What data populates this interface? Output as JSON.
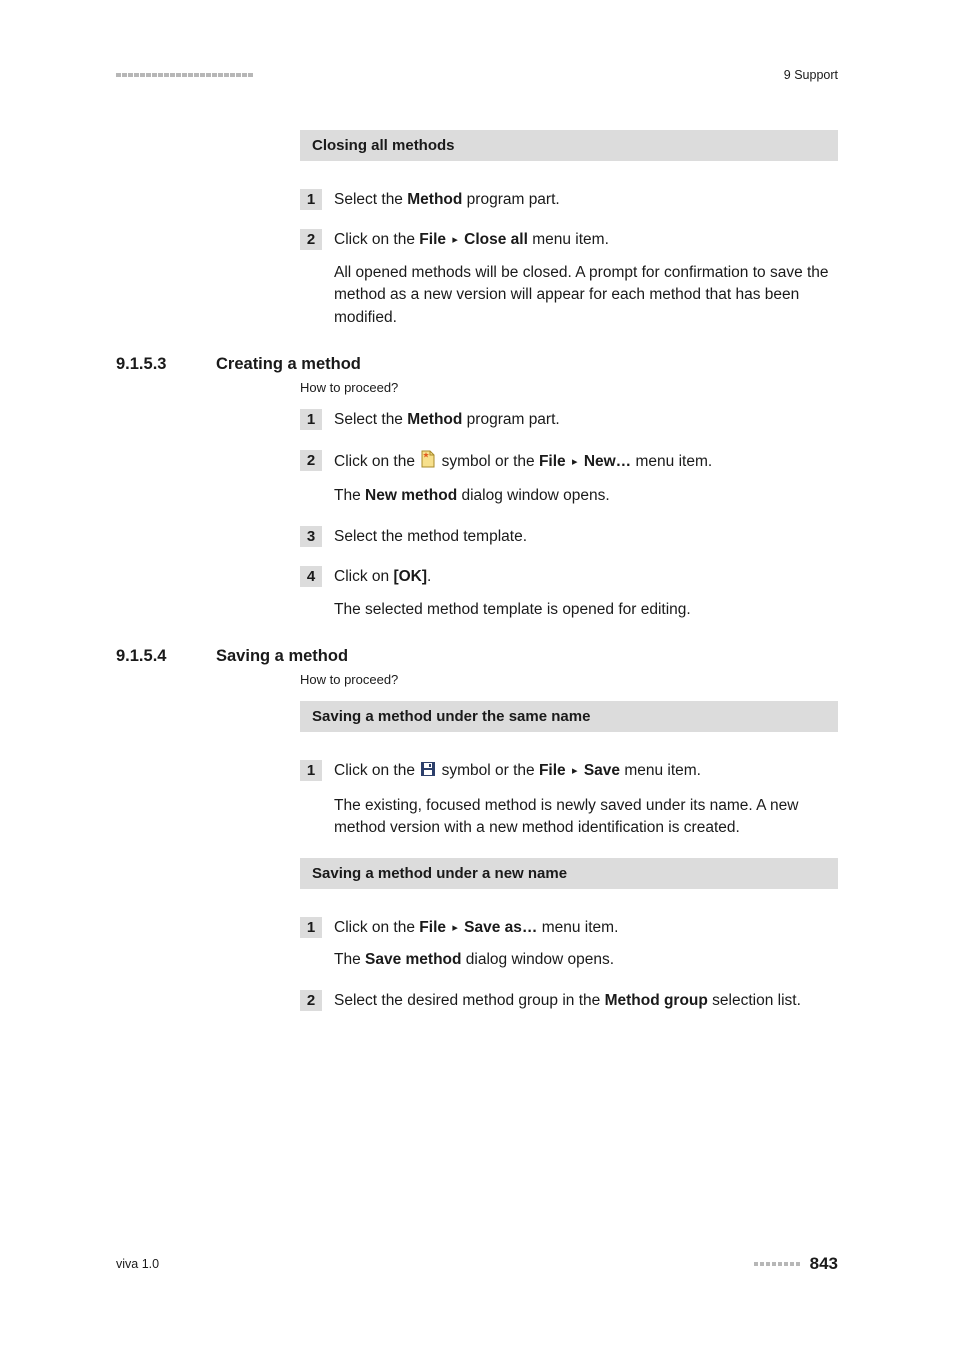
{
  "header": {
    "right_text": "9 Support",
    "dash_count_left": 23
  },
  "sections": [
    {
      "type": "heading-bar",
      "text": "Closing all methods"
    },
    {
      "type": "step",
      "num": "1",
      "lines": [
        {
          "parts": [
            "Select the ",
            {
              "b": "Method"
            },
            " program part."
          ]
        }
      ]
    },
    {
      "type": "step",
      "num": "2",
      "lines": [
        {
          "parts": [
            "Click on the ",
            {
              "b": "File"
            },
            " ",
            {
              "tri": "▸"
            },
            " ",
            {
              "b": "Close all"
            },
            " menu item."
          ]
        },
        {
          "parts": [
            "All opened methods will be closed. A prompt for confirmation to save the method as a new version will appear for each method that has been modified."
          ]
        }
      ]
    },
    {
      "type": "subsection",
      "num": "9.1.5.3",
      "title": "Creating a method",
      "how": "How to proceed?"
    },
    {
      "type": "step",
      "num": "1",
      "lines": [
        {
          "parts": [
            "Select the ",
            {
              "b": "Method"
            },
            " program part."
          ]
        }
      ]
    },
    {
      "type": "step",
      "num": "2",
      "lines": [
        {
          "parts": [
            "Click on the ",
            {
              "icon": "new"
            },
            " symbol or the ",
            {
              "b": "File"
            },
            " ",
            {
              "tri": "▸"
            },
            " ",
            {
              "b": "New…"
            },
            " menu item."
          ]
        },
        {
          "parts": [
            "The ",
            {
              "b": "New method"
            },
            " dialog window opens."
          ]
        }
      ]
    },
    {
      "type": "step",
      "num": "3",
      "lines": [
        {
          "parts": [
            "Select the method template."
          ]
        }
      ]
    },
    {
      "type": "step",
      "num": "4",
      "lines": [
        {
          "parts": [
            "Click on ",
            {
              "b": "[OK]"
            },
            "."
          ]
        },
        {
          "parts": [
            "The selected method template is opened for editing."
          ]
        }
      ]
    },
    {
      "type": "subsection",
      "num": "9.1.5.4",
      "title": "Saving a method",
      "how": "How to proceed?"
    },
    {
      "type": "heading-bar",
      "text": "Saving a method under the same name"
    },
    {
      "type": "step",
      "num": "1",
      "lines": [
        {
          "parts": [
            "Click on the ",
            {
              "icon": "save"
            },
            " symbol or the ",
            {
              "b": "File"
            },
            " ",
            {
              "tri": "▸"
            },
            " ",
            {
              "b": "Save"
            },
            " menu item."
          ]
        },
        {
          "parts": [
            "The existing, focused method is newly saved under its name. A new method version with a new method identification is created."
          ]
        }
      ]
    },
    {
      "type": "heading-bar",
      "text": "Saving a method under a new name"
    },
    {
      "type": "step",
      "num": "1",
      "lines": [
        {
          "parts": [
            "Click on the ",
            {
              "b": "File"
            },
            " ",
            {
              "tri": "▸"
            },
            " ",
            {
              "b": "Save as…"
            },
            " menu item."
          ]
        },
        {
          "parts": [
            "The ",
            {
              "b": "Save method"
            },
            " dialog window opens."
          ]
        }
      ]
    },
    {
      "type": "step",
      "num": "2",
      "lines": [
        {
          "parts": [
            "Select the desired method group in the ",
            {
              "b": "Method group"
            },
            " selection list."
          ]
        }
      ]
    }
  ],
  "footer": {
    "left": "viva 1.0",
    "dash_count_right": 8,
    "page": "843"
  },
  "icons": {
    "new_color_fill": "#f7e08c",
    "new_color_border": "#a88a2a",
    "new_star": "#e25b1f",
    "save_fill": "#2c3f6b",
    "save_white": "#ffffff"
  }
}
